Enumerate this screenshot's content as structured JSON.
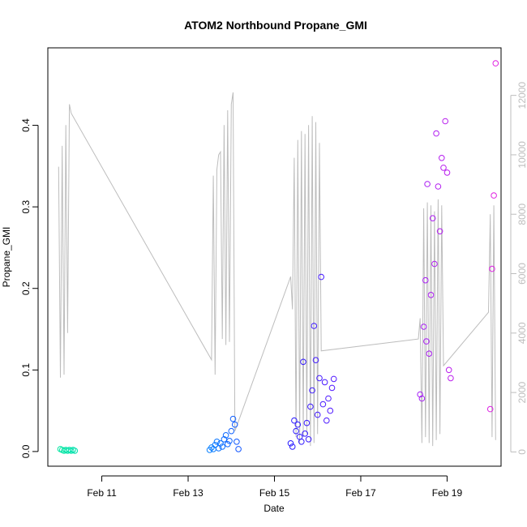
{
  "chart_data": {
    "type": "scatter",
    "title": "ATOM2 Northbound Propane_GMI",
    "xlabel": "Date",
    "ylabel": "Propane_GMI",
    "x_axis_type": "date",
    "xlim": [
      "2012-02-09T18:00",
      "2012-02-20T06:00"
    ],
    "x_ticks": [
      {
        "value": "2012-02-11T00:00",
        "label": "Feb 11"
      },
      {
        "value": "2012-02-13T00:00",
        "label": "Feb 13"
      },
      {
        "value": "2012-02-15T00:00",
        "label": "Feb 15"
      },
      {
        "value": "2012-02-17T00:00",
        "label": "Feb 17"
      },
      {
        "value": "2012-02-19T00:00",
        "label": "Feb 19"
      }
    ],
    "ylim": [
      -0.018,
      0.495
    ],
    "y_ticks": [
      "0.0",
      "0.1",
      "0.2",
      "0.3",
      "0.4"
    ],
    "y2_ticks": [
      "0",
      "2000",
      "4000",
      "6000",
      "8000",
      "10000",
      "12000"
    ],
    "y2lim": [
      -480,
      13600
    ],
    "grid": false,
    "legend": "none",
    "colors": {
      "frame": "#000000",
      "secondary_line": "#bdbdbd",
      "secondary_axis": "#bdbdbd"
    },
    "series": [
      {
        "marker": "circle-open",
        "color_scale": [
          "#00e5a0",
          "#00c0ff",
          "#1a1aff",
          "#8a1aff",
          "#e020e0"
        ],
        "points": [
          {
            "x": "2012-02-10T01:00",
            "y": 0.003
          },
          {
            "x": "2012-02-10T02:00",
            "y": 0.002
          },
          {
            "x": "2012-02-10T03:00",
            "y": 0.001
          },
          {
            "x": "2012-02-10T04:00",
            "y": 0.002
          },
          {
            "x": "2012-02-10T05:00",
            "y": 0.001
          },
          {
            "x": "2012-02-10T06:00",
            "y": 0.002
          },
          {
            "x": "2012-02-10T07:00",
            "y": 0.001
          },
          {
            "x": "2012-02-10T08:00",
            "y": 0.002
          },
          {
            "x": "2012-02-10T09:00",
            "y": 0.001
          },
          {
            "x": "2012-02-13T12:00",
            "y": 0.002
          },
          {
            "x": "2012-02-13T13:00",
            "y": 0.005
          },
          {
            "x": "2012-02-13T14:00",
            "y": 0.003
          },
          {
            "x": "2012-02-13T15:00",
            "y": 0.008
          },
          {
            "x": "2012-02-13T16:00",
            "y": 0.012
          },
          {
            "x": "2012-02-13T17:00",
            "y": 0.004
          },
          {
            "x": "2012-02-13T18:00",
            "y": 0.01
          },
          {
            "x": "2012-02-13T19:00",
            "y": 0.006
          },
          {
            "x": "2012-02-13T20:00",
            "y": 0.015
          },
          {
            "x": "2012-02-13T21:00",
            "y": 0.02
          },
          {
            "x": "2012-02-13T22:00",
            "y": 0.009
          },
          {
            "x": "2012-02-13T23:00",
            "y": 0.013
          },
          {
            "x": "2012-02-14T00:00",
            "y": 0.025
          },
          {
            "x": "2012-02-14T01:00",
            "y": 0.04
          },
          {
            "x": "2012-02-14T02:00",
            "y": 0.033
          },
          {
            "x": "2012-02-14T03:00",
            "y": 0.012
          },
          {
            "x": "2012-02-14T04:00",
            "y": 0.003
          },
          {
            "x": "2012-02-15T09:00",
            "y": 0.01
          },
          {
            "x": "2012-02-15T10:00",
            "y": 0.006
          },
          {
            "x": "2012-02-15T11:00",
            "y": 0.038
          },
          {
            "x": "2012-02-15T12:00",
            "y": 0.025
          },
          {
            "x": "2012-02-15T13:00",
            "y": 0.033
          },
          {
            "x": "2012-02-15T14:00",
            "y": 0.018
          },
          {
            "x": "2012-02-15T15:00",
            "y": 0.012
          },
          {
            "x": "2012-02-15T16:00",
            "y": 0.11
          },
          {
            "x": "2012-02-15T17:00",
            "y": 0.022
          },
          {
            "x": "2012-02-15T18:00",
            "y": 0.035
          },
          {
            "x": "2012-02-15T19:00",
            "y": 0.015
          },
          {
            "x": "2012-02-15T20:00",
            "y": 0.055
          },
          {
            "x": "2012-02-15T21:00",
            "y": 0.075
          },
          {
            "x": "2012-02-15T22:00",
            "y": 0.154
          },
          {
            "x": "2012-02-15T23:00",
            "y": 0.112
          },
          {
            "x": "2012-02-16T00:00",
            "y": 0.045
          },
          {
            "x": "2012-02-16T01:00",
            "y": 0.09
          },
          {
            "x": "2012-02-16T02:00",
            "y": 0.214
          },
          {
            "x": "2012-02-16T03:00",
            "y": 0.058
          },
          {
            "x": "2012-02-16T04:00",
            "y": 0.085
          },
          {
            "x": "2012-02-16T05:00",
            "y": 0.038
          },
          {
            "x": "2012-02-16T06:00",
            "y": 0.065
          },
          {
            "x": "2012-02-16T07:00",
            "y": 0.05
          },
          {
            "x": "2012-02-16T08:00",
            "y": 0.078
          },
          {
            "x": "2012-02-16T09:00",
            "y": 0.089
          },
          {
            "x": "2012-02-18T09:00",
            "y": 0.07
          },
          {
            "x": "2012-02-18T10:00",
            "y": 0.065
          },
          {
            "x": "2012-02-18T11:00",
            "y": 0.153
          },
          {
            "x": "2012-02-18T12:00",
            "y": 0.21
          },
          {
            "x": "2012-02-18T12:30",
            "y": 0.135
          },
          {
            "x": "2012-02-18T13:00",
            "y": 0.328
          },
          {
            "x": "2012-02-18T14:00",
            "y": 0.12
          },
          {
            "x": "2012-02-18T15:00",
            "y": 0.192
          },
          {
            "x": "2012-02-18T16:00",
            "y": 0.286
          },
          {
            "x": "2012-02-18T17:00",
            "y": 0.23
          },
          {
            "x": "2012-02-18T18:00",
            "y": 0.39
          },
          {
            "x": "2012-02-18T19:00",
            "y": 0.325
          },
          {
            "x": "2012-02-18T20:00",
            "y": 0.27
          },
          {
            "x": "2012-02-18T21:00",
            "y": 0.36
          },
          {
            "x": "2012-02-18T22:00",
            "y": 0.348
          },
          {
            "x": "2012-02-18T23:00",
            "y": 0.405
          },
          {
            "x": "2012-02-19T00:00",
            "y": 0.342
          },
          {
            "x": "2012-02-19T01:00",
            "y": 0.1
          },
          {
            "x": "2012-02-19T02:00",
            "y": 0.09
          },
          {
            "x": "2012-02-20T00:00",
            "y": 0.052
          },
          {
            "x": "2012-02-20T01:00",
            "y": 0.224
          },
          {
            "x": "2012-02-20T02:00",
            "y": 0.314
          },
          {
            "x": "2012-02-20T03:00",
            "y": 0.476
          }
        ]
      }
    ]
  }
}
